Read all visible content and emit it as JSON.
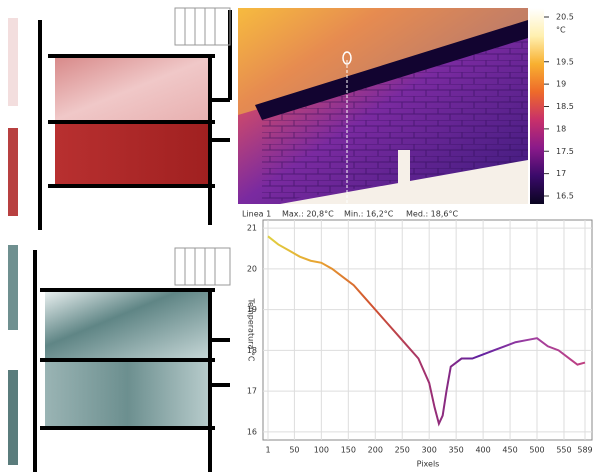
{
  "thermal_image": {
    "unit": "°C",
    "ticks": [
      20.5,
      19.5,
      19,
      18.5,
      18,
      17.5,
      17,
      16.5
    ],
    "range": [
      16.5,
      20.5
    ],
    "colors": [
      "#0a0420",
      "#3a0a6a",
      "#8a1a8a",
      "#c8306a",
      "#ee6a2a",
      "#f8b030",
      "#fff0b0",
      "#ffffff"
    ]
  },
  "chart_data": {
    "type": "line",
    "xlabel": "Pixels",
    "ylabel": "Temperatura °C",
    "stats": [
      {
        "label": "Max.: 20,8°C",
        "color": "#d04040"
      },
      {
        "label": "Min.: 16,2°C",
        "color": "#4040c0"
      },
      {
        "label": "Med.: 18,6°C",
        "color": "#30a030"
      }
    ],
    "x": [
      1,
      20,
      40,
      60,
      80,
      100,
      120,
      140,
      160,
      180,
      200,
      220,
      240,
      260,
      280,
      300,
      310,
      318,
      325,
      332,
      340,
      360,
      380,
      400,
      420,
      440,
      460,
      480,
      500,
      520,
      540,
      560,
      575,
      589
    ],
    "series": [
      {
        "name": "Linea 1",
        "colors": [
          "#e0d040",
          "#e8a030",
          "#d05030",
          "#a03070",
          "#6020a0",
          "#a040a0",
          "#c04080"
        ],
        "values": [
          20.8,
          20.6,
          20.45,
          20.3,
          20.2,
          20.15,
          20.0,
          19.8,
          19.6,
          19.3,
          19.0,
          18.7,
          18.4,
          18.1,
          17.8,
          17.2,
          16.6,
          16.2,
          16.4,
          17.0,
          17.6,
          17.8,
          17.8,
          17.9,
          18.0,
          18.1,
          18.2,
          18.25,
          18.3,
          18.1,
          18.0,
          17.8,
          17.65,
          17.7
        ]
      }
    ],
    "xlim": [
      1,
      589
    ],
    "ylim": [
      15.8,
      21.2
    ],
    "xticks": [
      1,
      50,
      100,
      150,
      200,
      250,
      300,
      350,
      400,
      450,
      500,
      550,
      589
    ],
    "yticks": [
      16,
      17,
      18,
      19,
      20,
      21
    ],
    "grid": true
  }
}
